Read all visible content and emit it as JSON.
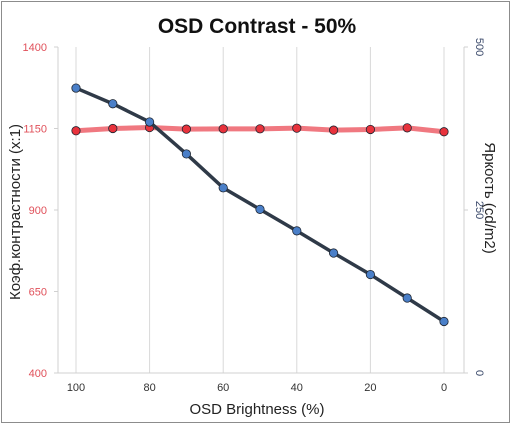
{
  "chart_data": {
    "type": "line",
    "title": "OSD Contrast - 50%",
    "xlabel": "OSD Brightness (%)",
    "ylabel_left": "Коэф.контрастности (x:1)",
    "ylabel_right": "Яркость (cd/m2)",
    "x": [
      100,
      90,
      80,
      70,
      60,
      50,
      40,
      30,
      20,
      10,
      0
    ],
    "x_ticks": [
      "100",
      "80",
      "60",
      "40",
      "20",
      "0"
    ],
    "x_reversed": true,
    "ylim_left": [
      400,
      1400
    ],
    "ylim_right": [
      0,
      500
    ],
    "y_ticks_left": [
      "1400",
      "1150",
      "900",
      "650",
      "400"
    ],
    "y_ticks_right": [
      "500",
      "250",
      "0"
    ],
    "grid": true,
    "series": [
      {
        "axis": "left",
        "color": "#e8323c",
        "line_color": "#f07880",
        "values": [
          1143,
          1150,
          1153,
          1148,
          1149,
          1149,
          1151,
          1145,
          1147,
          1152,
          1140
        ]
      },
      {
        "axis": "right",
        "color": "#4a7fc8",
        "line_color": "#2f3a48",
        "values": [
          437,
          413,
          385,
          336,
          284,
          251,
          218,
          184,
          151,
          115,
          79
        ]
      }
    ]
  },
  "colors": {
    "frame": "#8c8c8c",
    "axis": "#d0d0d0",
    "grid": "#d9d9d9",
    "left_tick": "#e0505a",
    "right_tick": "#3b4a6b"
  }
}
